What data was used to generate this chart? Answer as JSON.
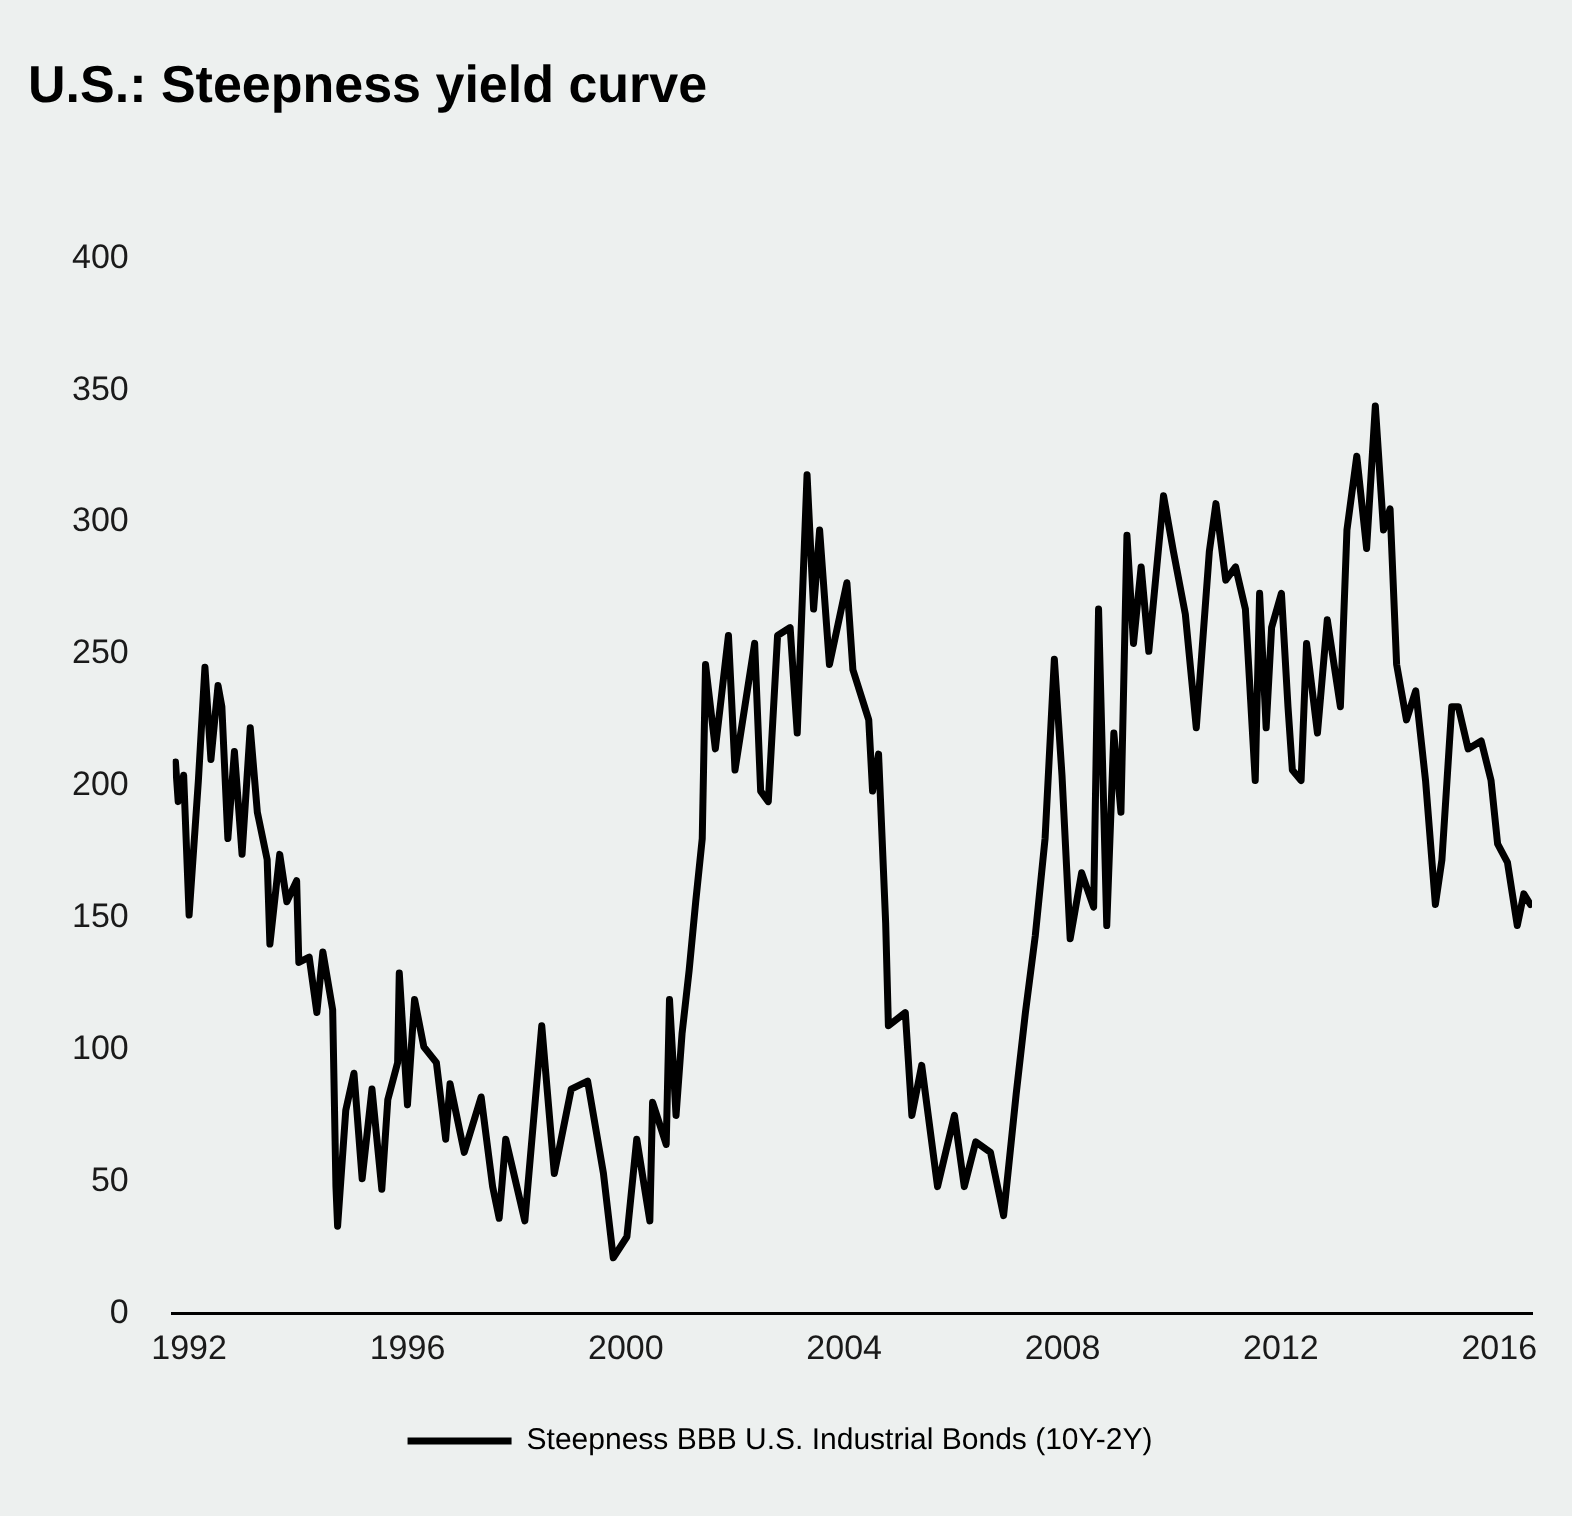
{
  "chart_data": {
    "type": "line",
    "title": "U.S.: Steepness yield curve",
    "xlim": [
      1991.7,
      2016.6
    ],
    "xticks": [
      1992,
      1996,
      2000,
      2004,
      2008,
      2012,
      2016
    ],
    "ylim": [
      0,
      400
    ],
    "yticks": [
      0,
      50,
      100,
      150,
      200,
      250,
      300,
      350,
      400
    ],
    "grid": false,
    "legend": "bottom",
    "marker": "none",
    "line_style": "solid",
    "series": [
      {
        "name": "Steepness BBB U.S. Industrial Bonds (10Y-2Y)",
        "color": "#000000",
        "x": [
          1991.75,
          1991.8,
          1991.9,
          1992.0,
          1992.17,
          1992.29,
          1992.4,
          1992.53,
          1992.6,
          1992.71,
          1992.83,
          1992.97,
          1993.12,
          1993.25,
          1993.43,
          1993.48,
          1993.66,
          1993.79,
          1993.97,
          1994.01,
          1994.2,
          1994.34,
          1994.45,
          1994.63,
          1994.69,
          1994.72,
          1994.87,
          1995.02,
          1995.17,
          1995.35,
          1995.53,
          1995.64,
          1995.82,
          1995.85,
          1996.0,
          1996.13,
          1996.3,
          1996.53,
          1996.7,
          1996.78,
          1997.04,
          1997.35,
          1997.56,
          1997.68,
          1997.8,
          1998.15,
          1998.46,
          1998.69,
          1999.0,
          1999.3,
          1999.59,
          1999.77,
          2000.02,
          2000.2,
          2000.44,
          2000.49,
          2000.74,
          2000.8,
          2000.92,
          2001.03,
          2001.16,
          2001.28,
          2001.4,
          2001.46,
          2001.64,
          2001.88,
          2002.0,
          2002.36,
          2002.47,
          2002.61,
          2002.78,
          2003.01,
          2003.14,
          2003.32,
          2003.44,
          2003.55,
          2003.73,
          2004.05,
          2004.16,
          2004.45,
          2004.52,
          2004.63,
          2004.76,
          2004.81,
          2005.12,
          2005.24,
          2005.42,
          2005.71,
          2006.02,
          2006.2,
          2006.41,
          2006.68,
          2006.92,
          2007.15,
          2007.32,
          2007.5,
          2007.68,
          2007.85,
          2007.99,
          2008.14,
          2008.35,
          2008.57,
          2008.66,
          2008.81,
          2008.94,
          2009.07,
          2009.18,
          2009.3,
          2009.44,
          2009.58,
          2009.85,
          2010.03,
          2010.25,
          2010.45,
          2010.69,
          2010.81,
          2010.99,
          2011.17,
          2011.35,
          2011.53,
          2011.61,
          2011.73,
          2011.83,
          2012.01,
          2012.13,
          2012.21,
          2012.37,
          2012.47,
          2012.67,
          2012.85,
          2013.09,
          2013.21,
          2013.39,
          2013.57,
          2013.73,
          2013.88,
          2014.0,
          2014.12,
          2014.3,
          2014.47,
          2014.65,
          2014.83,
          2014.95,
          2015.13,
          2015.25,
          2015.43,
          2015.67,
          2015.85,
          2015.97,
          2016.15,
          2016.33,
          2016.45,
          2016.57
        ],
        "values": [
          209,
          194,
          204,
          151,
          202,
          245,
          210,
          238,
          230,
          180,
          213,
          174,
          222,
          190,
          172,
          140,
          174,
          156,
          164,
          133,
          135,
          114,
          137,
          115,
          48,
          33,
          77,
          91,
          51,
          85,
          47,
          81,
          95,
          129,
          79,
          119,
          101,
          95,
          66,
          87,
          61,
          82,
          48,
          36,
          66,
          35,
          109,
          53,
          85,
          88,
          53,
          21,
          29,
          66,
          35,
          80,
          64,
          119,
          75,
          106,
          130,
          156,
          180,
          246,
          214,
          257,
          206,
          254,
          198,
          194,
          257,
          260,
          220,
          318,
          267,
          297,
          246,
          277,
          244,
          225,
          198,
          212,
          148,
          109,
          114,
          75,
          94,
          48,
          75,
          48,
          65,
          61,
          37,
          83,
          114,
          143,
          180,
          248,
          204,
          142,
          167,
          154,
          267,
          147,
          220,
          190,
          295,
          254,
          283,
          251,
          310,
          289,
          265,
          222,
          289,
          307,
          278,
          283,
          267,
          202,
          273,
          222,
          260,
          273,
          230,
          206,
          202,
          254,
          220,
          263,
          230,
          297,
          325,
          290,
          344,
          297,
          305,
          246,
          225,
          236,
          202,
          155,
          172,
          230,
          230,
          214,
          217,
          202,
          178,
          171,
          147,
          159,
          155
        ]
      }
    ]
  }
}
